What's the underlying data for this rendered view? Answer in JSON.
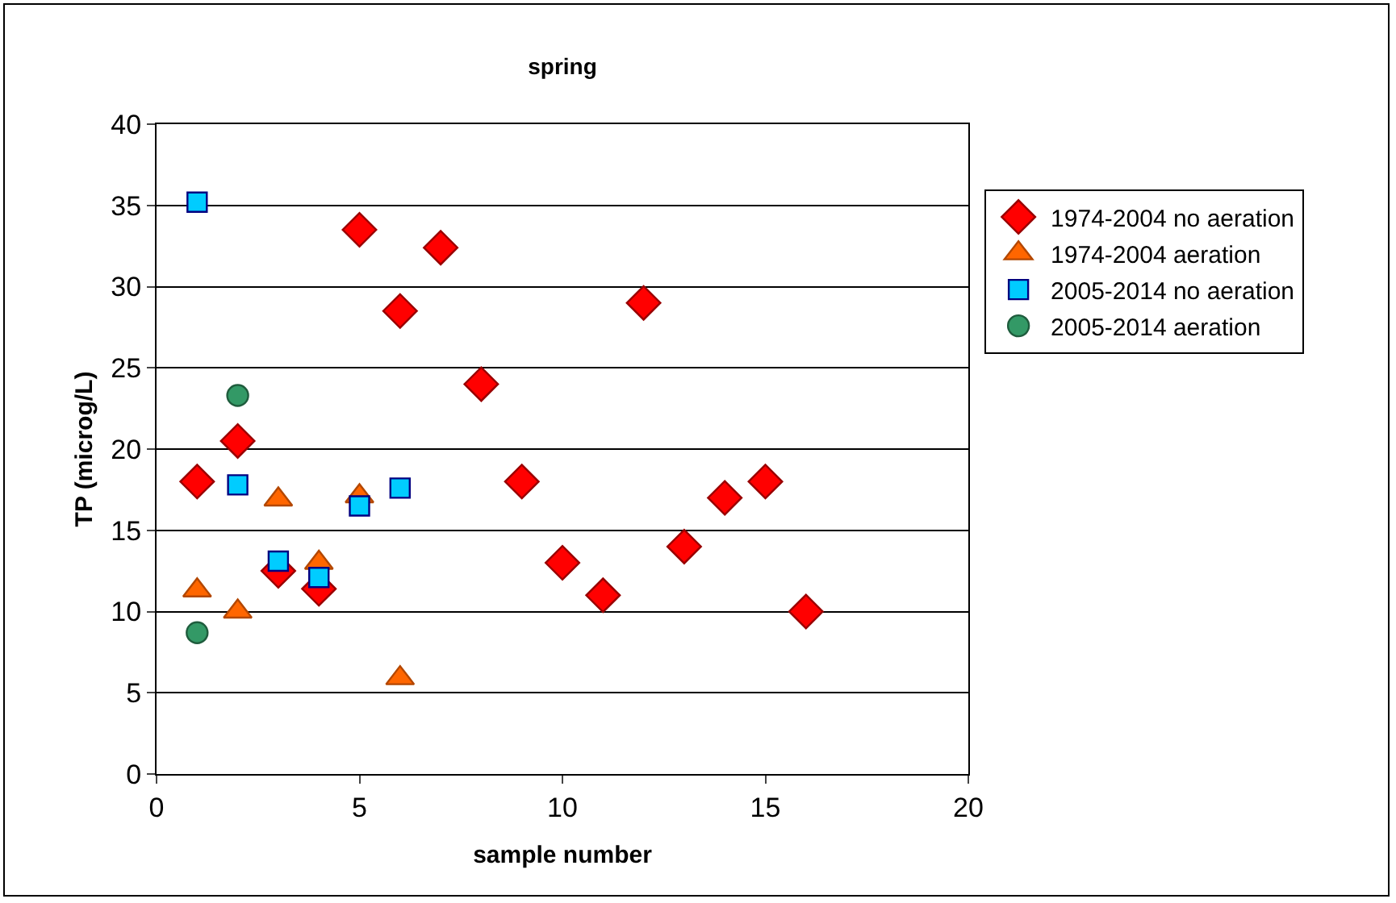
{
  "chart_data": {
    "type": "scatter",
    "title": "spring",
    "xlabel": "sample number",
    "ylabel": "TP (microg/L)",
    "xlim": [
      0,
      20
    ],
    "xticks": [
      0,
      5,
      10,
      15,
      20
    ],
    "ylim": [
      0,
      40
    ],
    "yticks": [
      0,
      5,
      10,
      15,
      20,
      25,
      30,
      35,
      40
    ],
    "grid": "y",
    "legend": "top right",
    "series": [
      {
        "name": "1974-2004 no aeration",
        "color": "#ff0000",
        "marker": "diamond",
        "x": [
          1,
          2,
          3,
          4,
          5,
          6,
          7,
          8,
          9,
          10,
          11,
          12,
          13,
          14,
          15,
          16
        ],
        "values": [
          18,
          20.5,
          12.5,
          11.4,
          33.5,
          28.5,
          32.4,
          24,
          18,
          13,
          11,
          29,
          14,
          17,
          18,
          10
        ]
      },
      {
        "name": "1974-2004 aeration",
        "color": "#ff6600",
        "marker": "triangle",
        "x": [
          1,
          2,
          3,
          4,
          5,
          6
        ],
        "values": [
          11.3,
          10,
          16.9,
          13,
          17.1,
          5.9
        ]
      },
      {
        "name": "2005-2014 no aeration",
        "color": "#00ccff",
        "marker": "square",
        "x": [
          1,
          2,
          3,
          4,
          5,
          6
        ],
        "values": [
          35.2,
          17.8,
          13.1,
          12.1,
          16.5,
          17.6
        ]
      },
      {
        "name": "2005-2014 aeration",
        "color": "#339966",
        "marker": "circle",
        "x": [
          1,
          2
        ],
        "values": [
          8.7,
          23.3
        ]
      }
    ]
  }
}
